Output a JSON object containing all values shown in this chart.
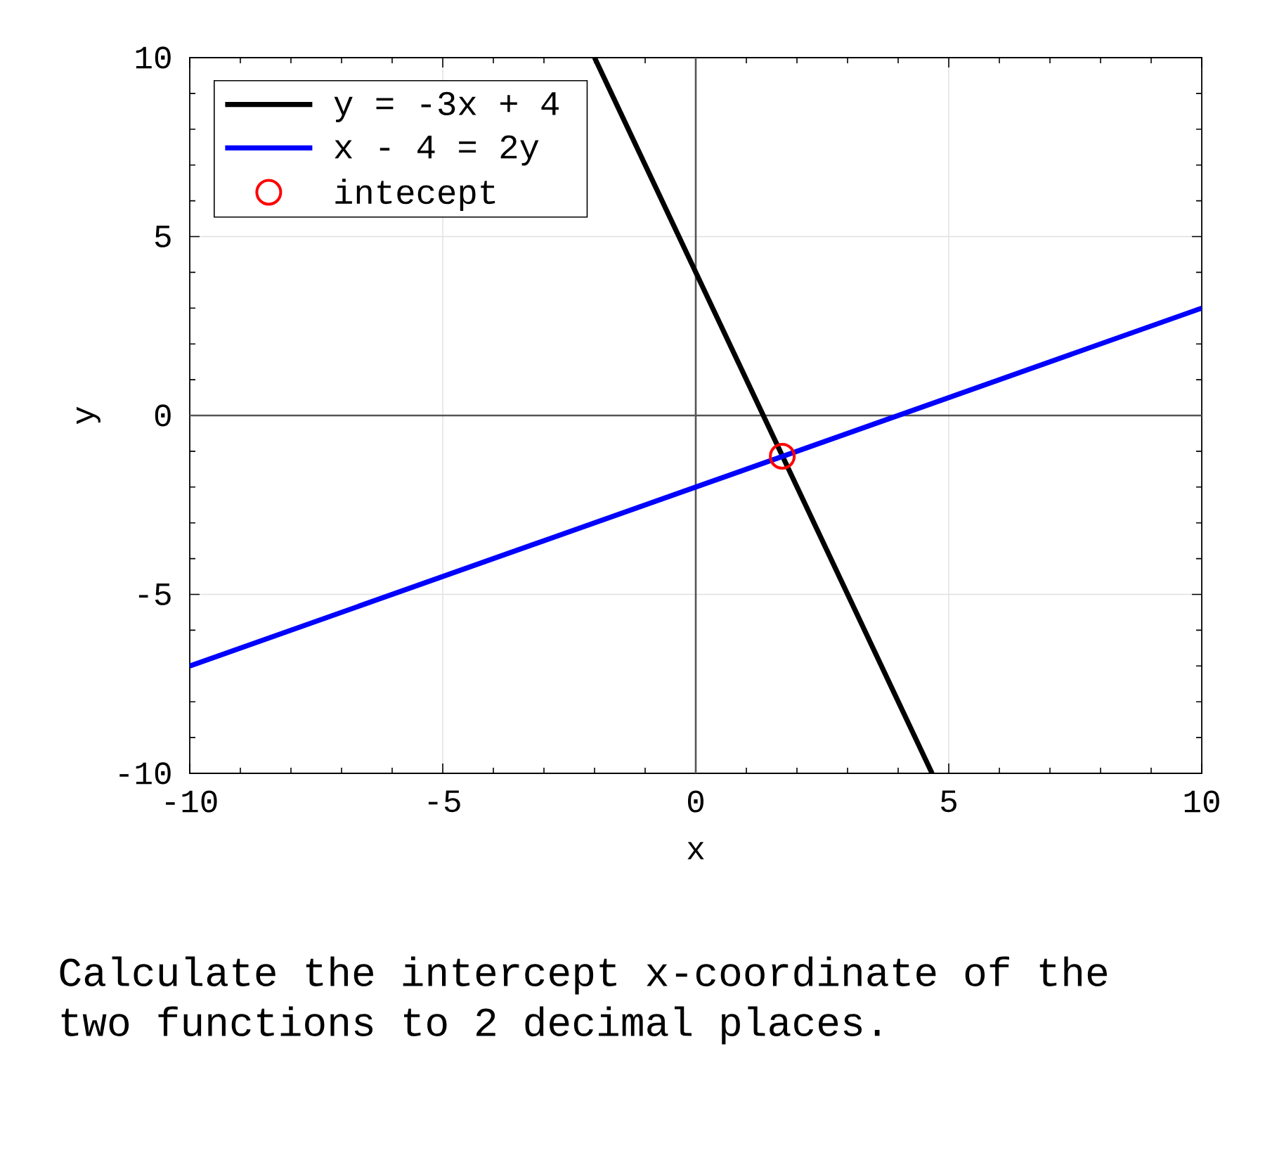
{
  "chart_data": {
    "type": "line",
    "xlabel": "x",
    "ylabel": "y",
    "xlim": [
      -10,
      10
    ],
    "ylim": [
      -10,
      10
    ],
    "xticks": [
      -10,
      -5,
      0,
      5,
      10
    ],
    "yticks": [
      -10,
      -5,
      0,
      5,
      10
    ],
    "grid": true,
    "legend": "top left",
    "series": [
      {
        "name": "y = -3x + 4",
        "color": "#000000",
        "x": [
          -2,
          4.67
        ],
        "values": [
          10,
          -10
        ]
      },
      {
        "name": "x - 4 = 2y",
        "color": "#0000ff",
        "x": [
          -10,
          10
        ],
        "values": [
          -7,
          3
        ]
      },
      {
        "name": "intecept",
        "type": "scatter",
        "marker": "circle",
        "color": "#ff0000",
        "x": [
          1.71
        ],
        "values": [
          -1.14
        ]
      }
    ],
    "annotations": [
      "Calculate the intercept x-coordinate of the two functions to 2 decimal places."
    ]
  }
}
